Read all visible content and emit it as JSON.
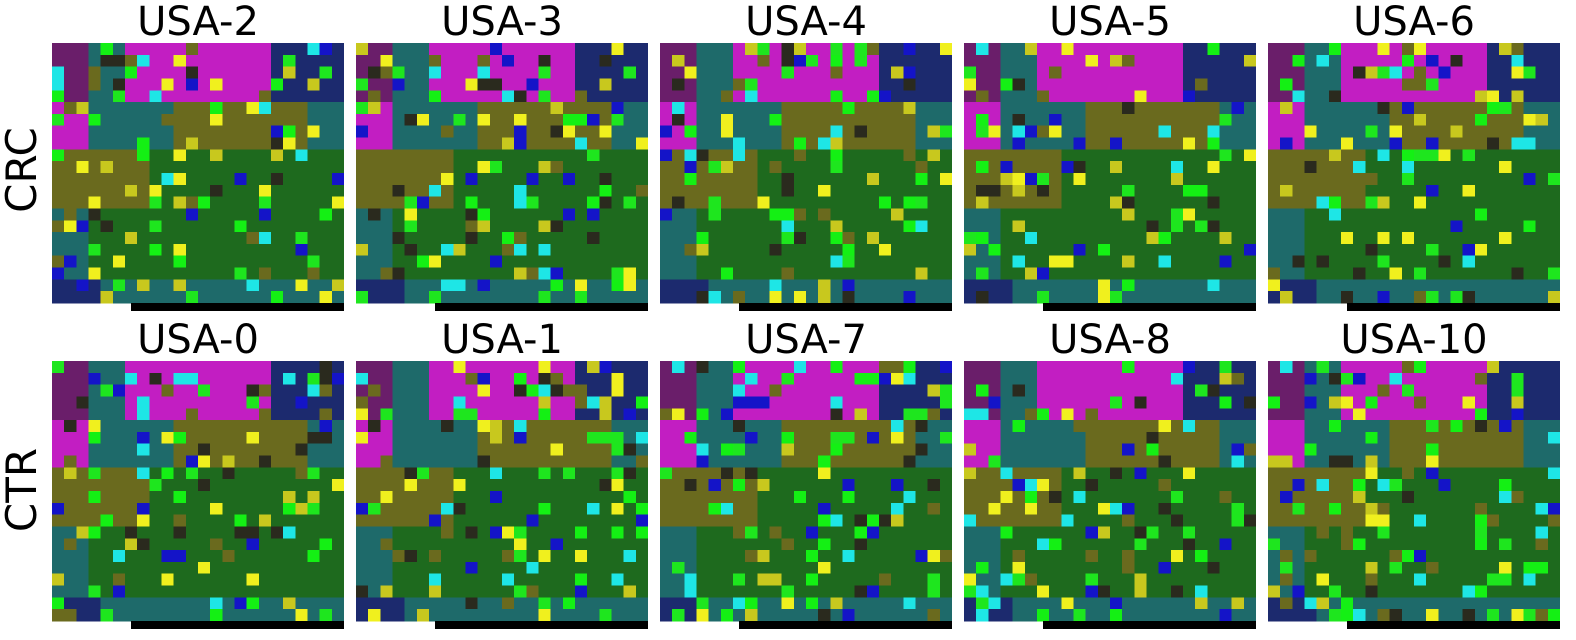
{
  "chart_data": {
    "type": "heatmap",
    "rows": [
      {
        "label": "CRC",
        "panels": [
          "USA-2",
          "USA-3",
          "USA-4",
          "USA-5",
          "USA-6"
        ]
      },
      {
        "label": "CTR",
        "panels": [
          "USA-0",
          "USA-1",
          "USA-7",
          "USA-8",
          "USA-10"
        ]
      }
    ],
    "grid": {
      "cols": 24,
      "rows": 22
    },
    "palette": {
      "navy": "#1c2a6e",
      "magenta": "#c21ec2",
      "purple": "#6a1e6a",
      "teal": "#1e6a6a",
      "cyan": "#1ee6e6",
      "olive": "#6a6a1e",
      "yellow": "#c8c81e",
      "bright_yellow": "#f0f01e",
      "green": "#1e6a1e",
      "lime": "#1ee61e",
      "bright_green": "#14f014",
      "dark": "#2a2a1e",
      "blue": "#1414c8",
      "black": "#000000"
    }
  }
}
